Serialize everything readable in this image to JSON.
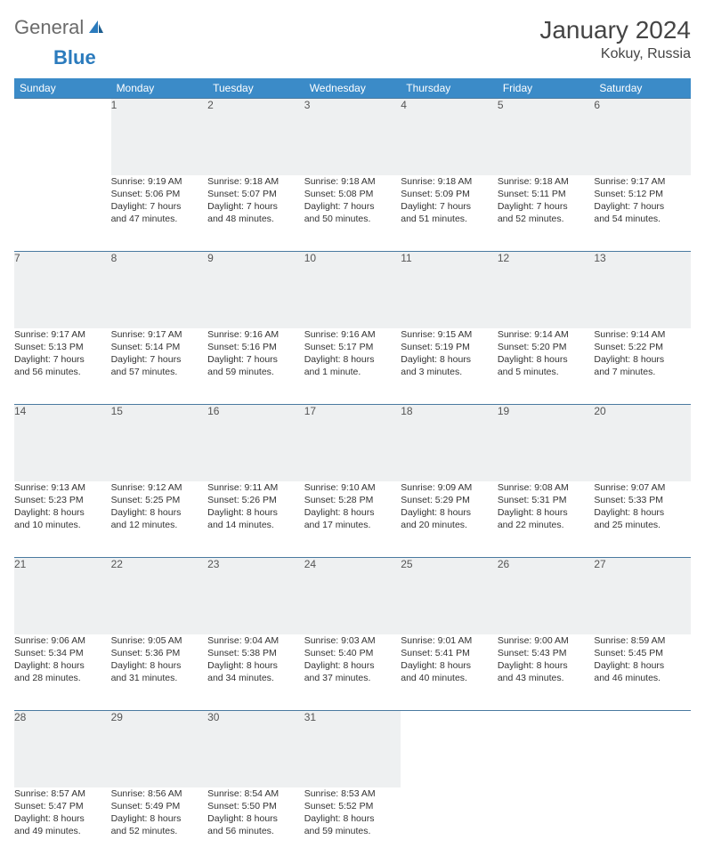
{
  "brand": {
    "part1": "General",
    "part2": "Blue"
  },
  "title": "January 2024",
  "location": "Kokuy, Russia",
  "colors": {
    "header_bg": "#3b8bc8",
    "header_text": "#ffffff",
    "daynum_bg": "#eef0f1",
    "rule": "#4a7aa0",
    "text": "#333333",
    "logo_gray": "#6b6b6b",
    "logo_blue": "#2b7bbd"
  },
  "weekdays": [
    "Sunday",
    "Monday",
    "Tuesday",
    "Wednesday",
    "Thursday",
    "Friday",
    "Saturday"
  ],
  "weeks": [
    {
      "nums": [
        "",
        "1",
        "2",
        "3",
        "4",
        "5",
        "6"
      ],
      "sunrise": [
        "",
        "Sunrise: 9:19 AM",
        "Sunrise: 9:18 AM",
        "Sunrise: 9:18 AM",
        "Sunrise: 9:18 AM",
        "Sunrise: 9:18 AM",
        "Sunrise: 9:17 AM"
      ],
      "sunset": [
        "",
        "Sunset: 5:06 PM",
        "Sunset: 5:07 PM",
        "Sunset: 5:08 PM",
        "Sunset: 5:09 PM",
        "Sunset: 5:11 PM",
        "Sunset: 5:12 PM"
      ],
      "day1": [
        "",
        "Daylight: 7 hours",
        "Daylight: 7 hours",
        "Daylight: 7 hours",
        "Daylight: 7 hours",
        "Daylight: 7 hours",
        "Daylight: 7 hours"
      ],
      "day2": [
        "",
        "and 47 minutes.",
        "and 48 minutes.",
        "and 50 minutes.",
        "and 51 minutes.",
        "and 52 minutes.",
        "and 54 minutes."
      ]
    },
    {
      "nums": [
        "7",
        "8",
        "9",
        "10",
        "11",
        "12",
        "13"
      ],
      "sunrise": [
        "Sunrise: 9:17 AM",
        "Sunrise: 9:17 AM",
        "Sunrise: 9:16 AM",
        "Sunrise: 9:16 AM",
        "Sunrise: 9:15 AM",
        "Sunrise: 9:14 AM",
        "Sunrise: 9:14 AM"
      ],
      "sunset": [
        "Sunset: 5:13 PM",
        "Sunset: 5:14 PM",
        "Sunset: 5:16 PM",
        "Sunset: 5:17 PM",
        "Sunset: 5:19 PM",
        "Sunset: 5:20 PM",
        "Sunset: 5:22 PM"
      ],
      "day1": [
        "Daylight: 7 hours",
        "Daylight: 7 hours",
        "Daylight: 7 hours",
        "Daylight: 8 hours",
        "Daylight: 8 hours",
        "Daylight: 8 hours",
        "Daylight: 8 hours"
      ],
      "day2": [
        "and 56 minutes.",
        "and 57 minutes.",
        "and 59 minutes.",
        "and 1 minute.",
        "and 3 minutes.",
        "and 5 minutes.",
        "and 7 minutes."
      ]
    },
    {
      "nums": [
        "14",
        "15",
        "16",
        "17",
        "18",
        "19",
        "20"
      ],
      "sunrise": [
        "Sunrise: 9:13 AM",
        "Sunrise: 9:12 AM",
        "Sunrise: 9:11 AM",
        "Sunrise: 9:10 AM",
        "Sunrise: 9:09 AM",
        "Sunrise: 9:08 AM",
        "Sunrise: 9:07 AM"
      ],
      "sunset": [
        "Sunset: 5:23 PM",
        "Sunset: 5:25 PM",
        "Sunset: 5:26 PM",
        "Sunset: 5:28 PM",
        "Sunset: 5:29 PM",
        "Sunset: 5:31 PM",
        "Sunset: 5:33 PM"
      ],
      "day1": [
        "Daylight: 8 hours",
        "Daylight: 8 hours",
        "Daylight: 8 hours",
        "Daylight: 8 hours",
        "Daylight: 8 hours",
        "Daylight: 8 hours",
        "Daylight: 8 hours"
      ],
      "day2": [
        "and 10 minutes.",
        "and 12 minutes.",
        "and 14 minutes.",
        "and 17 minutes.",
        "and 20 minutes.",
        "and 22 minutes.",
        "and 25 minutes."
      ]
    },
    {
      "nums": [
        "21",
        "22",
        "23",
        "24",
        "25",
        "26",
        "27"
      ],
      "sunrise": [
        "Sunrise: 9:06 AM",
        "Sunrise: 9:05 AM",
        "Sunrise: 9:04 AM",
        "Sunrise: 9:03 AM",
        "Sunrise: 9:01 AM",
        "Sunrise: 9:00 AM",
        "Sunrise: 8:59 AM"
      ],
      "sunset": [
        "Sunset: 5:34 PM",
        "Sunset: 5:36 PM",
        "Sunset: 5:38 PM",
        "Sunset: 5:40 PM",
        "Sunset: 5:41 PM",
        "Sunset: 5:43 PM",
        "Sunset: 5:45 PM"
      ],
      "day1": [
        "Daylight: 8 hours",
        "Daylight: 8 hours",
        "Daylight: 8 hours",
        "Daylight: 8 hours",
        "Daylight: 8 hours",
        "Daylight: 8 hours",
        "Daylight: 8 hours"
      ],
      "day2": [
        "and 28 minutes.",
        "and 31 minutes.",
        "and 34 minutes.",
        "and 37 minutes.",
        "and 40 minutes.",
        "and 43 minutes.",
        "and 46 minutes."
      ]
    },
    {
      "nums": [
        "28",
        "29",
        "30",
        "31",
        "",
        "",
        ""
      ],
      "sunrise": [
        "Sunrise: 8:57 AM",
        "Sunrise: 8:56 AM",
        "Sunrise: 8:54 AM",
        "Sunrise: 8:53 AM",
        "",
        "",
        ""
      ],
      "sunset": [
        "Sunset: 5:47 PM",
        "Sunset: 5:49 PM",
        "Sunset: 5:50 PM",
        "Sunset: 5:52 PM",
        "",
        "",
        ""
      ],
      "day1": [
        "Daylight: 8 hours",
        "Daylight: 8 hours",
        "Daylight: 8 hours",
        "Daylight: 8 hours",
        "",
        "",
        ""
      ],
      "day2": [
        "and 49 minutes.",
        "and 52 minutes.",
        "and 56 minutes.",
        "and 59 minutes.",
        "",
        "",
        ""
      ]
    }
  ]
}
